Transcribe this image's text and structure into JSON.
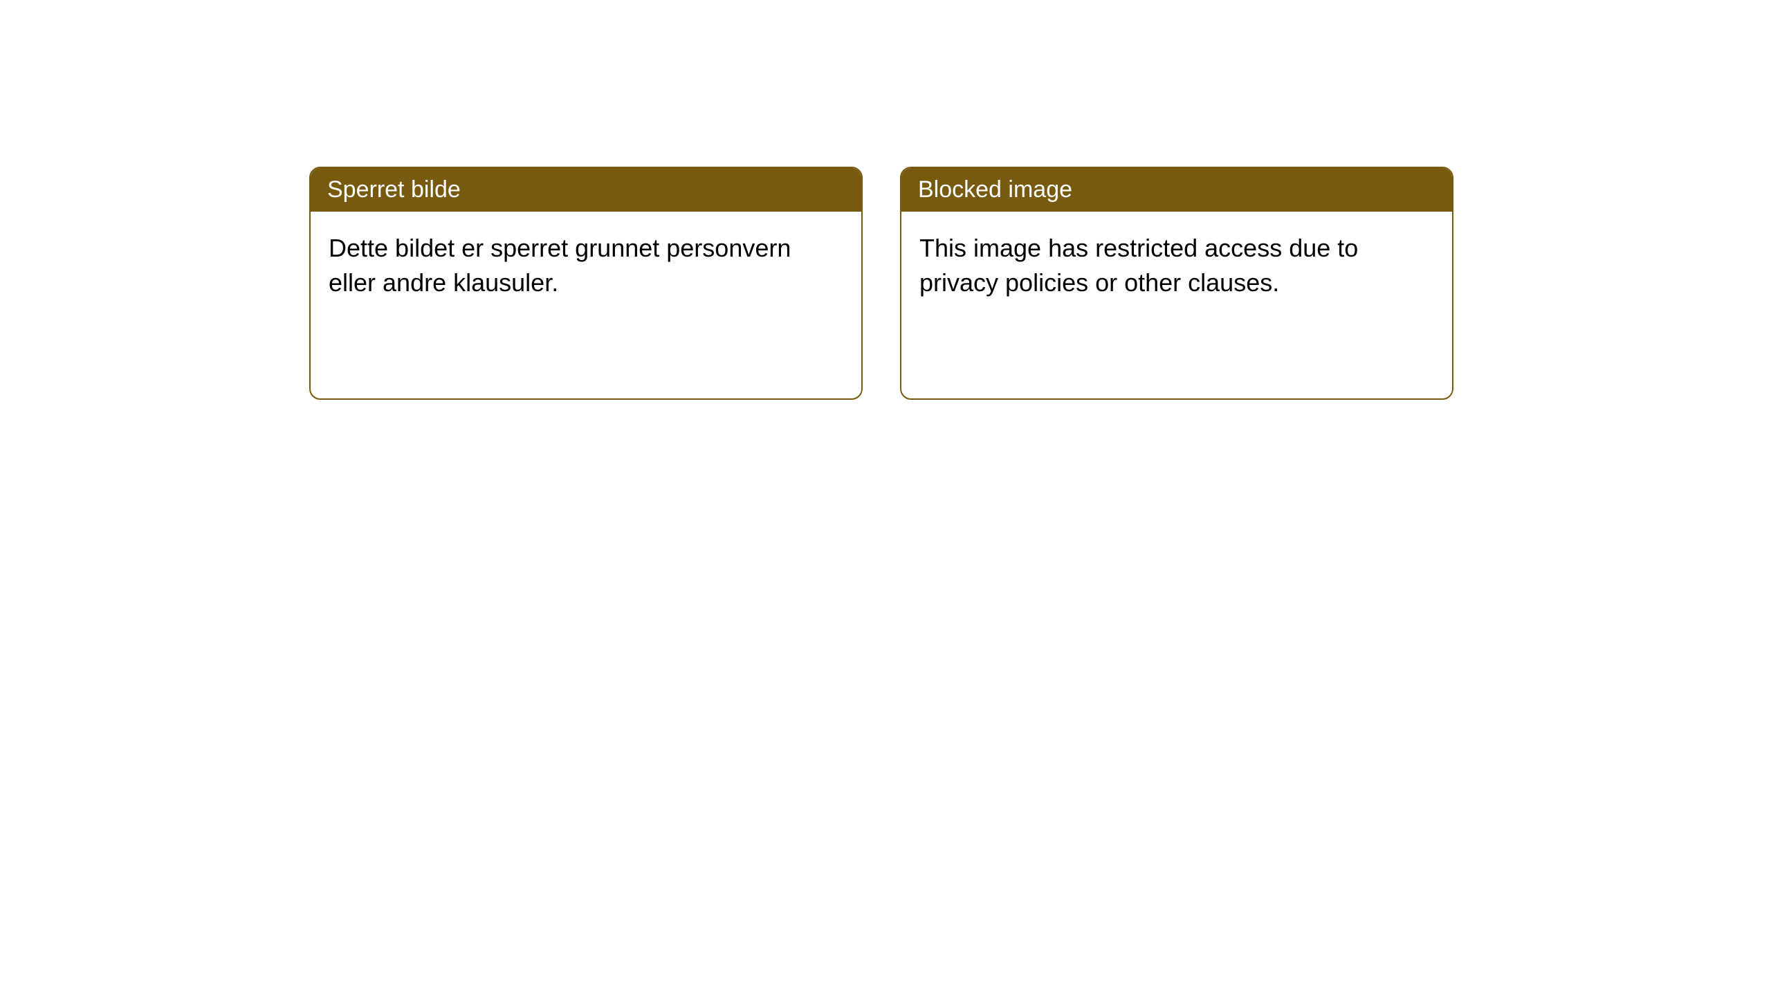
{
  "cards": [
    {
      "title": "Sperret bilde",
      "body": "Dette bildet er sperret grunnet personvern eller andre klausuler."
    },
    {
      "title": "Blocked image",
      "body": "This image has restricted access due to privacy policies or other clauses."
    }
  ],
  "style": {
    "header_bg": "#785a0f",
    "header_text_color": "#ffffff",
    "border_color": "#785a0f",
    "body_bg": "#ffffff",
    "body_text_color": "#000000",
    "border_radius": 16,
    "header_fontsize": 34,
    "body_fontsize": 36
  }
}
